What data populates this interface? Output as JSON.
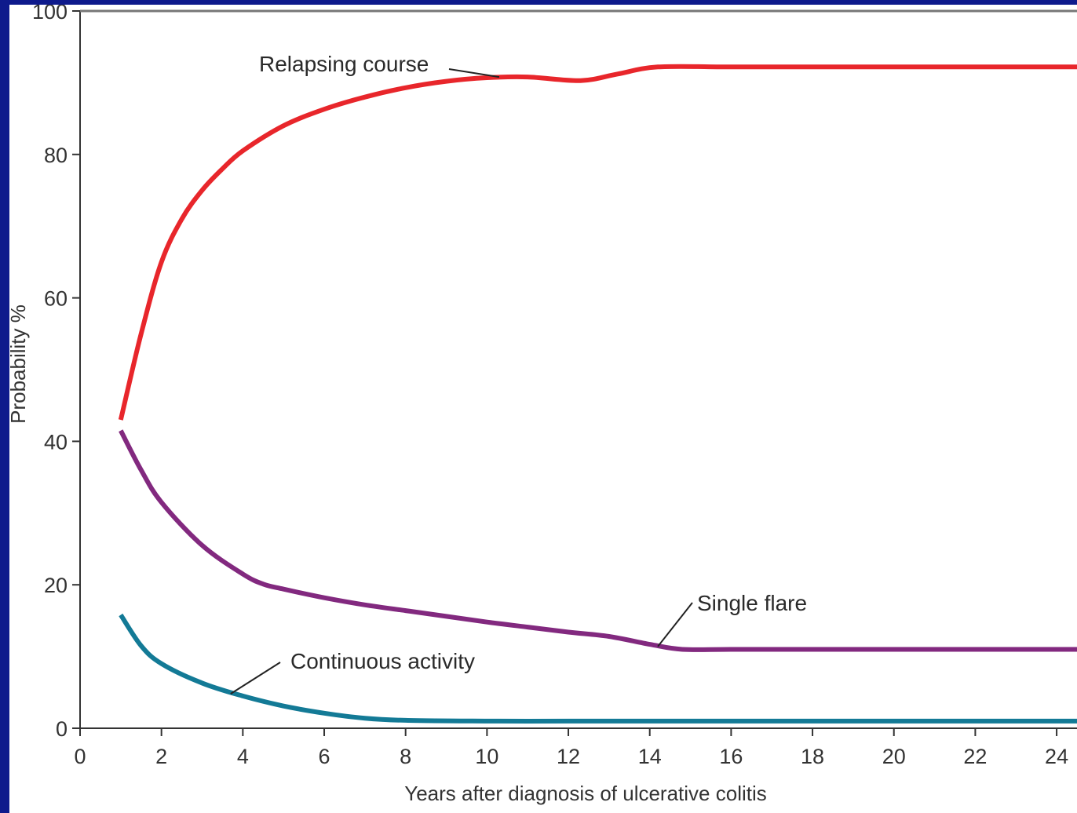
{
  "chart_data": {
    "type": "line",
    "title": "",
    "xlabel": "Years after diagnosis of ulcerative colitis",
    "ylabel": "Probability %",
    "xlim": [
      0,
      24.5
    ],
    "ylim": [
      0,
      100
    ],
    "x_ticks": [
      0,
      2,
      4,
      6,
      8,
      10,
      12,
      14,
      16,
      18,
      20,
      22,
      24
    ],
    "y_ticks": [
      0,
      20,
      40,
      60,
      80,
      100
    ],
    "grid": false,
    "legend": "none (series labeled directly by annotations)",
    "series": [
      {
        "name": "Relapsing course",
        "color": "#e8262b",
        "x": [
          1,
          1.5,
          2,
          2.5,
          3,
          3.5,
          4,
          5,
          6,
          7,
          8,
          9,
          10,
          11,
          12.3,
          13.2,
          14.2,
          16,
          18,
          20,
          22,
          24.5
        ],
        "y": [
          43,
          55,
          65,
          71,
          75,
          78,
          80.5,
          84,
          86.3,
          88,
          89.3,
          90.2,
          90.7,
          90.8,
          90.3,
          91.2,
          92.2,
          92.2,
          92.2,
          92.2,
          92.2,
          92.2
        ]
      },
      {
        "name": "Single flare",
        "color": "#82297f",
        "x": [
          1,
          1.5,
          2,
          3,
          4,
          4.5,
          5,
          6,
          7,
          8,
          9,
          10,
          11,
          12,
          13,
          14,
          14.8,
          16,
          18,
          20,
          22,
          24.5
        ],
        "y": [
          41.5,
          36,
          31.5,
          25.5,
          21.5,
          20.1,
          19.4,
          18.2,
          17.2,
          16.4,
          15.6,
          14.8,
          14.1,
          13.4,
          12.8,
          11.7,
          11,
          11,
          11,
          11,
          11,
          11
        ]
      },
      {
        "name": "Continuous activity",
        "color": "#137a96",
        "x": [
          1,
          1.5,
          2,
          3,
          4,
          5,
          6,
          7,
          8,
          10,
          12,
          14,
          16,
          18,
          20,
          22,
          24.5
        ],
        "y": [
          15.8,
          11.5,
          9,
          6.3,
          4.5,
          3.1,
          2.1,
          1.4,
          1.1,
          1,
          1,
          1,
          1,
          1,
          1,
          1,
          1
        ]
      }
    ],
    "annotations": [
      {
        "text": "Relapsing course",
        "series": "Relapsing course",
        "points_to": [
          10.3,
          90.8
        ]
      },
      {
        "text": "Single flare",
        "series": "Single flare",
        "points_to": [
          14.2,
          11.4
        ]
      },
      {
        "text": "Continuous activity",
        "series": "Continuous activity",
        "points_to": [
          3.7,
          4.8
        ]
      }
    ]
  }
}
